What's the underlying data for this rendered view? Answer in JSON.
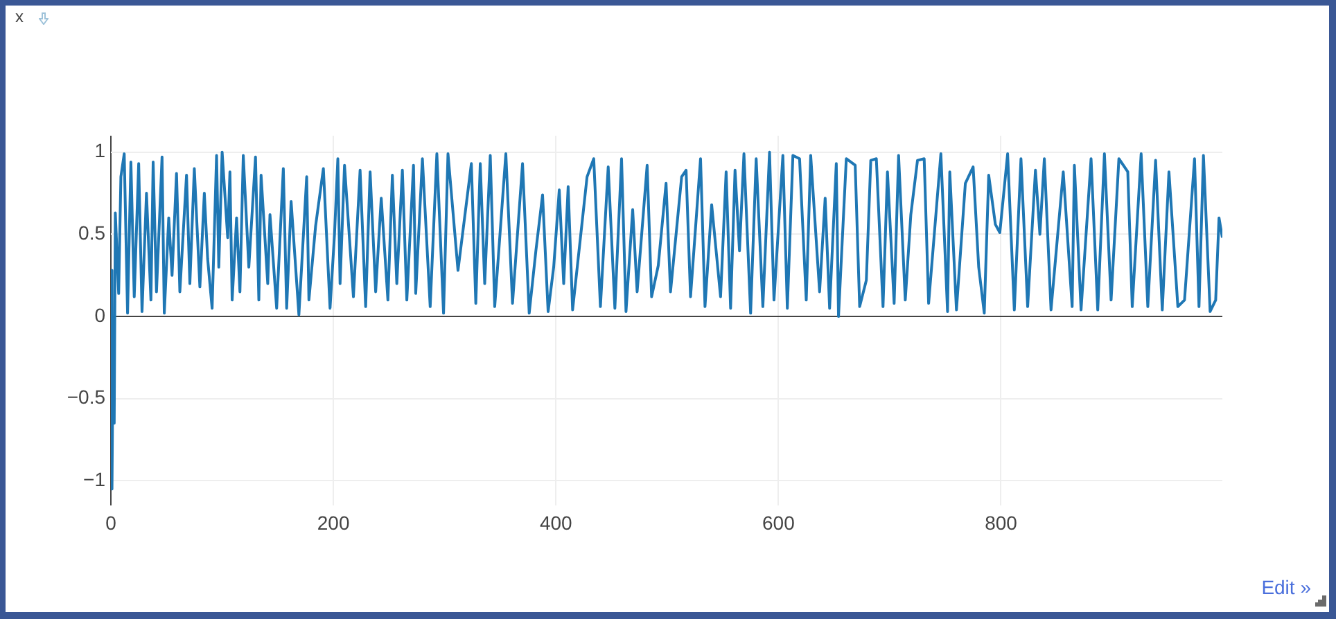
{
  "chart_data": {
    "type": "line",
    "annotations": [
      "x",
      "Edit »"
    ],
    "x": [
      0,
      1,
      2,
      3,
      4,
      7,
      9,
      12,
      15,
      18,
      21,
      25,
      28,
      32,
      36,
      38,
      41,
      46,
      48,
      52,
      55,
      59,
      62,
      68,
      71,
      75,
      80,
      84,
      87,
      91,
      95,
      97,
      100,
      105,
      107,
      109,
      113,
      116,
      119,
      124,
      130,
      133,
      135,
      141,
      143,
      149,
      155,
      158,
      162,
      169,
      176,
      178,
      184,
      191,
      197,
      201,
      204,
      206,
      210,
      218,
      224,
      229,
      233,
      238,
      243,
      249,
      253,
      257,
      262,
      266,
      272,
      274,
      280,
      287,
      293,
      299,
      303,
      312,
      324,
      328,
      332,
      336,
      341,
      345,
      355,
      361,
      370,
      376,
      382,
      388,
      393,
      398,
      403,
      407,
      411,
      415,
      428,
      434,
      440,
      447,
      453,
      459,
      463,
      469,
      473,
      482,
      486,
      492,
      499,
      503,
      513,
      517,
      521,
      530,
      534,
      540,
      548,
      553,
      557,
      561,
      565,
      569,
      575,
      580,
      586,
      592,
      596,
      604,
      608,
      613,
      619,
      625,
      629,
      637,
      642,
      646,
      652,
      654,
      661,
      669,
      673,
      679,
      683,
      688,
      694,
      698,
      704,
      708,
      714,
      719,
      725,
      731,
      735,
      746,
      752,
      754,
      760,
      768,
      775,
      780,
      785,
      789,
      795,
      799,
      806,
      812,
      818,
      824,
      831,
      835,
      839,
      845,
      856,
      864,
      866,
      872,
      881,
      887,
      893,
      899,
      906,
      914,
      918,
      926,
      932,
      939,
      945,
      951,
      959,
      965,
      974,
      978,
      982,
      988,
      993,
      996,
      999
    ],
    "series": [
      {
        "color": "#1f77b4",
        "values": [
          0.28,
          -1.05,
          -0.15,
          -0.65,
          0.63,
          0.14,
          0.85,
          0.99,
          0.02,
          0.94,
          0.12,
          0.93,
          0.03,
          0.75,
          0.1,
          0.94,
          0.15,
          0.97,
          0.02,
          0.6,
          0.25,
          0.87,
          0.15,
          0.86,
          0.2,
          0.9,
          0.18,
          0.75,
          0.35,
          0.05,
          0.98,
          0.3,
          1.0,
          0.48,
          0.88,
          0.1,
          0.6,
          0.15,
          0.98,
          0.3,
          0.97,
          0.1,
          0.86,
          0.2,
          0.62,
          0.05,
          0.9,
          0.05,
          0.7,
          0.01,
          0.85,
          0.1,
          0.55,
          0.9,
          0.05,
          0.5,
          0.96,
          0.2,
          0.92,
          0.12,
          0.89,
          0.06,
          0.88,
          0.15,
          0.72,
          0.1,
          0.86,
          0.2,
          0.89,
          0.1,
          0.92,
          0.14,
          0.96,
          0.06,
          0.99,
          0.02,
          0.99,
          0.28,
          0.93,
          0.08,
          0.93,
          0.2,
          0.98,
          0.06,
          0.99,
          0.08,
          0.93,
          0.02,
          0.4,
          0.74,
          0.03,
          0.3,
          0.77,
          0.2,
          0.79,
          0.04,
          0.85,
          0.96,
          0.06,
          0.91,
          0.05,
          0.96,
          0.03,
          0.65,
          0.15,
          0.92,
          0.12,
          0.31,
          0.81,
          0.15,
          0.85,
          0.89,
          0.12,
          0.96,
          0.06,
          0.68,
          0.12,
          0.88,
          0.05,
          0.89,
          0.4,
          0.99,
          0.02,
          0.96,
          0.06,
          1.0,
          0.1,
          0.98,
          0.05,
          0.98,
          0.96,
          0.1,
          0.98,
          0.15,
          0.72,
          0.05,
          0.93,
          0.0,
          0.96,
          0.92,
          0.06,
          0.22,
          0.95,
          0.96,
          0.06,
          0.88,
          0.08,
          0.98,
          0.1,
          0.62,
          0.95,
          0.96,
          0.08,
          0.99,
          0.03,
          0.88,
          0.04,
          0.81,
          0.91,
          0.3,
          0.02,
          0.86,
          0.56,
          0.51,
          0.99,
          0.04,
          0.96,
          0.06,
          0.89,
          0.5,
          0.96,
          0.04,
          0.88,
          0.06,
          0.92,
          0.04,
          0.96,
          0.04,
          0.99,
          0.1,
          0.96,
          0.88,
          0.06,
          0.99,
          0.06,
          0.95,
          0.04,
          0.88,
          0.06,
          0.1,
          0.96,
          0.06,
          0.98,
          0.03,
          0.1,
          0.6,
          0.48
        ]
      }
    ],
    "xlim": [
      0,
      999
    ],
    "ylim": [
      -1.15,
      1.1
    ],
    "xticks": [
      0,
      200,
      400,
      600,
      800
    ],
    "yticks": [
      {
        "value": -1,
        "label": "−1"
      },
      {
        "value": -0.5,
        "label": "−0.5"
      },
      0,
      0.5,
      1
    ],
    "grid": true
  }
}
